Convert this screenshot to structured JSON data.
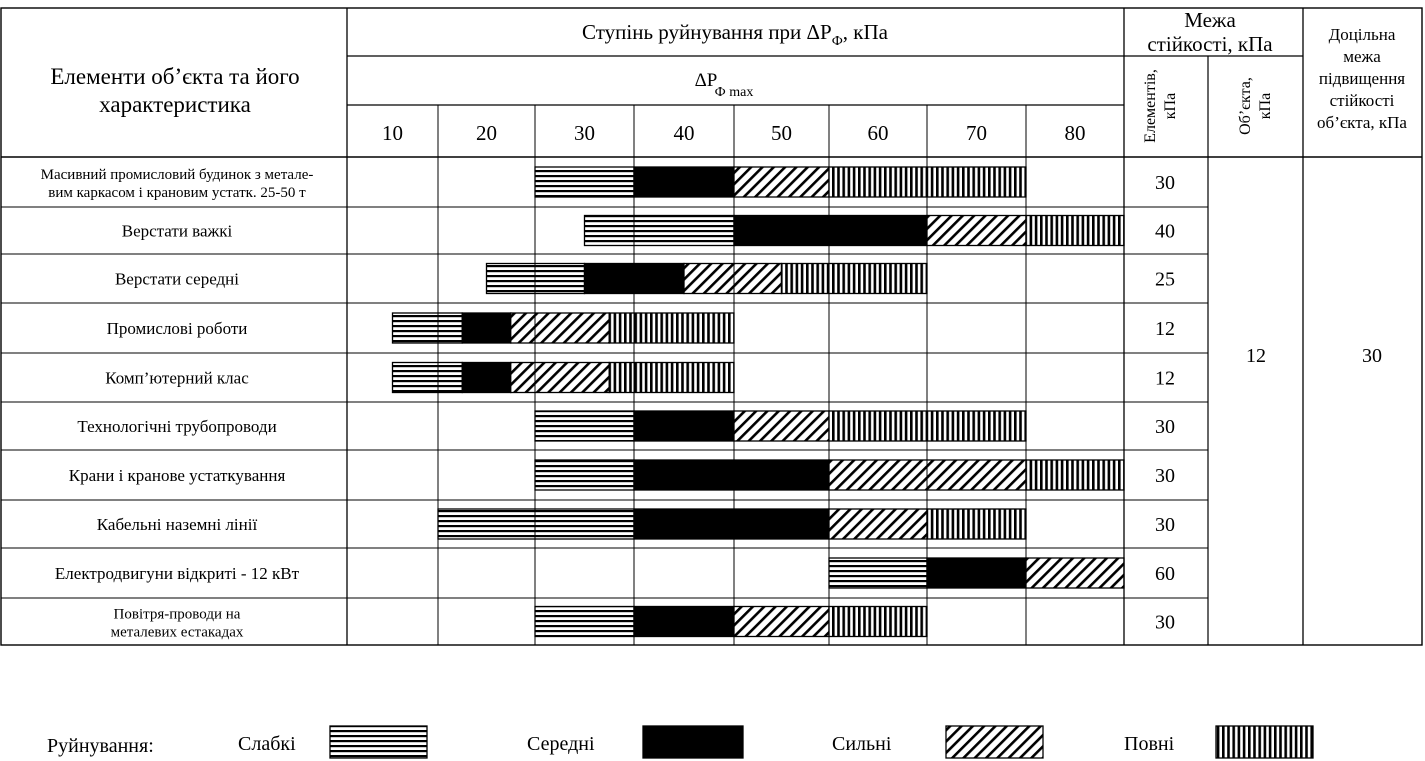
{
  "header": {
    "elements_title_line1": "Елементи об’єкта та його",
    "elements_title_line2": "характеристика",
    "destruction_title": "Ступінь руйнування при ΔP",
    "destruction_sub": "Ф",
    "destruction_unit": ", кПа",
    "dp_max_main": "ΔP",
    "dp_max_sub": "Ф max",
    "limit_title_line1": "Межа",
    "limit_title_line2": "стійкості, кПа",
    "elements_col_line1": "Елементів,",
    "elements_col_line2": "кПа",
    "object_col_line1": "Об’єкта,",
    "object_col_line2": "кПа",
    "target_line1": "Доцільна",
    "target_line2": "межа",
    "target_line3": "підвищення",
    "target_line4": "стійкості",
    "target_line5": "об’єкта, кПа",
    "pressures": [
      "10",
      "20",
      "30",
      "40",
      "50",
      "60",
      "70",
      "80"
    ]
  },
  "rows": [
    {
      "name_line1": "Масивний промисловий будинок з металe-",
      "name_line2": "вим каркасом і крановим устатк. 25-50 т",
      "limit": "30",
      "spans": [
        {
          "kind": "weak",
          "from": 30,
          "to": 40
        },
        {
          "kind": "medium",
          "from": 40,
          "to": 50
        },
        {
          "kind": "strong",
          "from": 50,
          "to": 60
        },
        {
          "kind": "full",
          "from": 60,
          "to": 80
        }
      ]
    },
    {
      "name_line1": "Верстати важкі",
      "name_line2": "",
      "limit": "40",
      "spans": [
        {
          "kind": "weak",
          "from": 35,
          "to": 50
        },
        {
          "kind": "medium",
          "from": 50,
          "to": 70
        },
        {
          "kind": "strong",
          "from": 70,
          "to": 80
        },
        {
          "kind": "full",
          "from": 80,
          "to": 90
        }
      ]
    },
    {
      "name_line1": "Верстати середні",
      "name_line2": "",
      "limit": "25",
      "spans": [
        {
          "kind": "weak",
          "from": 25,
          "to": 35
        },
        {
          "kind": "medium",
          "from": 35,
          "to": 45
        },
        {
          "kind": "strong",
          "from": 45,
          "to": 55
        },
        {
          "kind": "full",
          "from": 55,
          "to": 70
        }
      ]
    },
    {
      "name_line1": "Промислові роботи",
      "name_line2": "",
      "limit": "12",
      "spans": [
        {
          "kind": "weak",
          "from": 15,
          "to": 22.5
        },
        {
          "kind": "medium",
          "from": 22.5,
          "to": 27.5
        },
        {
          "kind": "strong",
          "from": 27.5,
          "to": 37.5
        },
        {
          "kind": "full",
          "from": 37.5,
          "to": 50
        }
      ]
    },
    {
      "name_line1": "Комп’ютерний клас",
      "name_line2": "",
      "limit": "12",
      "spans": [
        {
          "kind": "weak",
          "from": 15,
          "to": 22.5
        },
        {
          "kind": "medium",
          "from": 22.5,
          "to": 27.5
        },
        {
          "kind": "strong",
          "from": 27.5,
          "to": 37.5
        },
        {
          "kind": "full",
          "from": 37.5,
          "to": 50
        }
      ]
    },
    {
      "name_line1": "Технологічні трубопроводи",
      "name_line2": "",
      "limit": "30",
      "spans": [
        {
          "kind": "weak",
          "from": 30,
          "to": 40
        },
        {
          "kind": "medium",
          "from": 40,
          "to": 50
        },
        {
          "kind": "strong",
          "from": 50,
          "to": 60
        },
        {
          "kind": "full",
          "from": 60,
          "to": 80
        }
      ]
    },
    {
      "name_line1": "Крани і кранове устаткування",
      "name_line2": "",
      "limit": "30",
      "spans": [
        {
          "kind": "weak",
          "from": 30,
          "to": 40
        },
        {
          "kind": "medium",
          "from": 40,
          "to": 60
        },
        {
          "kind": "strong",
          "from": 60,
          "to": 80
        },
        {
          "kind": "full",
          "from": 80,
          "to": 90
        }
      ]
    },
    {
      "name_line1": "Кабельні наземні лінії",
      "name_line2": "",
      "limit": "30",
      "spans": [
        {
          "kind": "weak",
          "from": 20,
          "to": 40
        },
        {
          "kind": "medium",
          "from": 40,
          "to": 60
        },
        {
          "kind": "strong",
          "from": 60,
          "to": 70
        },
        {
          "kind": "full",
          "from": 70,
          "to": 80
        }
      ]
    },
    {
      "name_line1": "Електродвигуни відкриті - 12 кВт",
      "name_line2": "",
      "limit": "60",
      "spans": [
        {
          "kind": "weak",
          "from": 60,
          "to": 70
        },
        {
          "kind": "medium",
          "from": 70,
          "to": 80
        },
        {
          "kind": "strong",
          "from": 80,
          "to": 90
        }
      ]
    },
    {
      "name_line1": "Повітря-проводи на",
      "name_line2": "металевих естакадах",
      "limit": "30",
      "spans": [
        {
          "kind": "weak",
          "from": 30,
          "to": 40
        },
        {
          "kind": "medium",
          "from": 40,
          "to": 50
        },
        {
          "kind": "strong",
          "from": 50,
          "to": 60
        },
        {
          "kind": "full",
          "from": 60,
          "to": 70
        }
      ]
    }
  ],
  "object_limit": "12",
  "target_limit": "30",
  "legend": {
    "title": "Руйнування:",
    "items": [
      {
        "kind": "weak",
        "label": "Слабкі"
      },
      {
        "kind": "medium",
        "label": "Середні"
      },
      {
        "kind": "strong",
        "label": "Сильні"
      },
      {
        "kind": "full",
        "label": "Повні"
      }
    ]
  }
}
